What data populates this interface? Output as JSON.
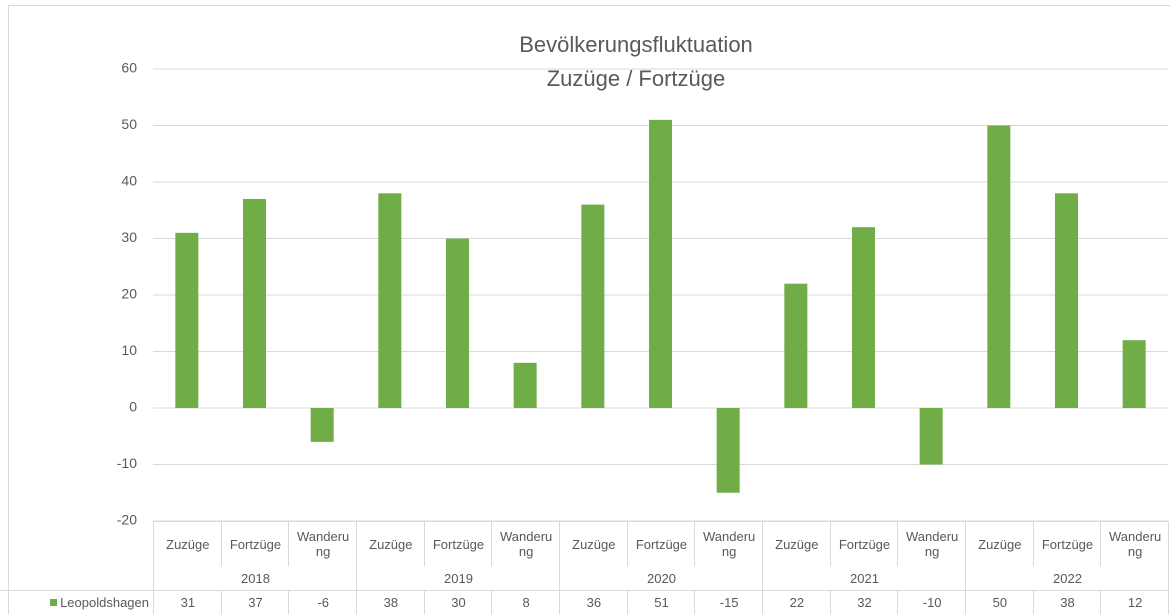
{
  "chart_data": {
    "type": "bar",
    "title": "Bevölkerungsfluktuation",
    "subtitle": "Zuzüge / Fortzüge",
    "categories": [
      "Zuzüge",
      "Fortzüge",
      "Wanderung",
      "Zuzüge",
      "Fortzüge",
      "Wanderung",
      "Zuzüge",
      "Fortzüge",
      "Wanderung",
      "Zuzüge",
      "Fortzüge",
      "Wanderung",
      "Zuzüge",
      "Fortzüge",
      "Wanderung"
    ],
    "groups": [
      "2018",
      "2019",
      "2020",
      "2021",
      "2022"
    ],
    "series": [
      {
        "name": "Leopoldshagen",
        "color": "#70ad47",
        "values": [
          31,
          37,
          -6,
          38,
          30,
          8,
          36,
          51,
          -15,
          22,
          32,
          -10,
          50,
          38,
          12
        ]
      }
    ],
    "ylim": [
      -20,
      60
    ],
    "yticks": [
      -20,
      -10,
      0,
      10,
      20,
      30,
      40,
      50,
      60
    ],
    "grid": true,
    "data_table": true
  }
}
